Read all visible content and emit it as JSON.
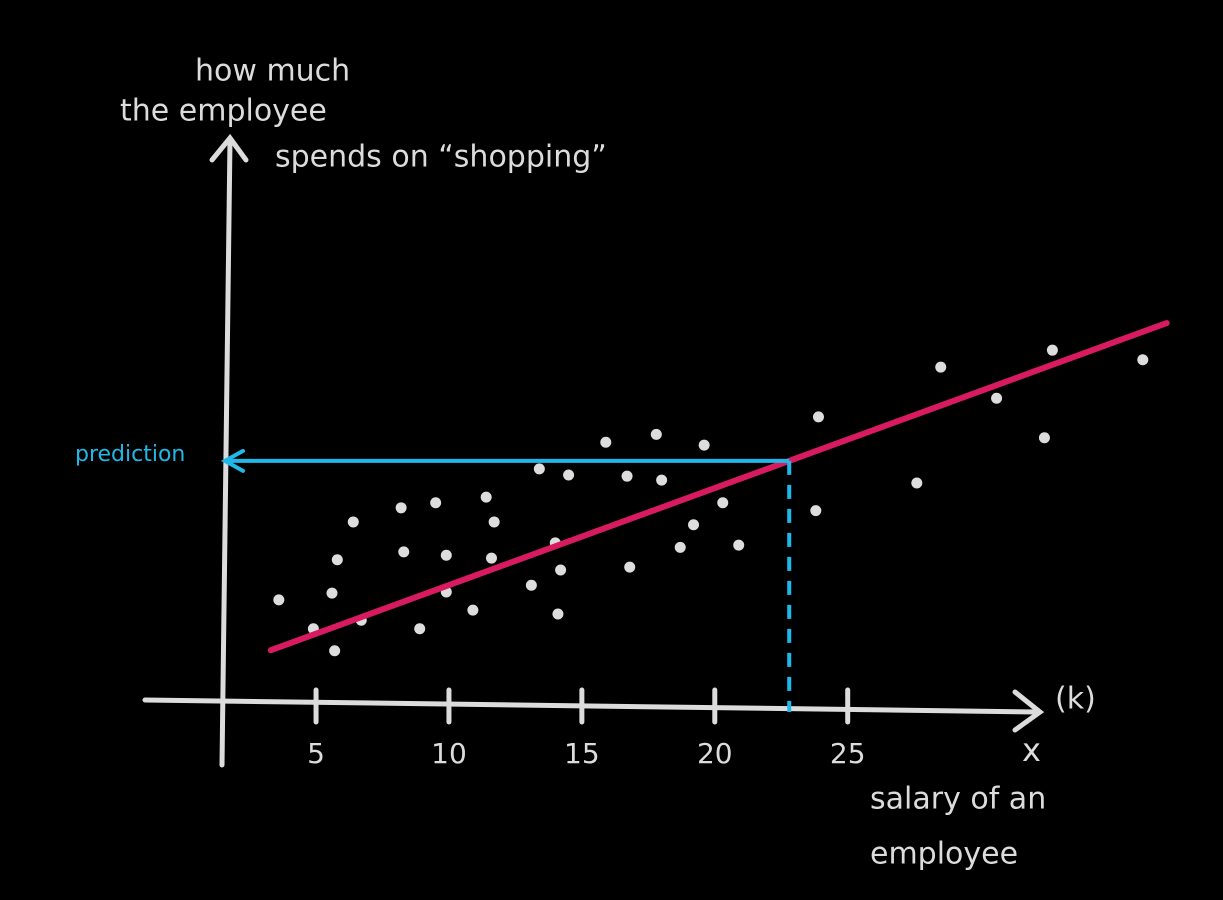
{
  "chart_data": {
    "type": "scatter",
    "y_label": [
      "how much",
      "the employee",
      "spends on “shopping”"
    ],
    "x_label": [
      "salary of an",
      "employee"
    ],
    "x_unit": "(k)",
    "x_symbol": "x",
    "x": [
      3.6,
      4.9,
      5.7,
      5.6,
      5.8,
      6.4,
      6.7,
      8.2,
      8.3,
      8.9,
      9.5,
      9.9,
      9.9,
      10.9,
      11.4,
      11.7,
      11.6,
      13.1,
      13.4,
      14.0,
      14.2,
      14.1,
      14.5,
      15.9,
      16.7,
      16.8,
      17.8,
      18.0,
      18.7,
      19.2,
      19.6,
      20.3,
      20.9,
      23.9,
      23.8,
      27.6,
      28.5,
      30.6,
      32.4,
      32.7,
      36.1
    ],
    "values": [
      18.6,
      13.5,
      9.6,
      19.8,
      25.7,
      32.4,
      15.0,
      34.9,
      27.1,
      13.5,
      35.8,
      26.5,
      20.0,
      16.8,
      36.8,
      32.4,
      26.0,
      21.2,
      41.8,
      28.7,
      23.9,
      16.1,
      40.7,
      46.5,
      40.5,
      24.4,
      47.9,
      39.8,
      27.9,
      31.9,
      46.0,
      35.8,
      28.3,
      51.0,
      34.4,
      39.3,
      59.8,
      54.3,
      47.3,
      62.8,
      61.1
    ],
    "color": "#dddddd",
    "xlim": [
      1.5,
      37.5
    ],
    "ylim": [
      0,
      100
    ],
    "xticks": [
      5,
      10,
      15,
      20,
      25
    ],
    "regression": {
      "color": "#d81b60",
      "x": [
        3.3,
        37.0
      ],
      "y": [
        9.7,
        67.6
      ]
    },
    "prediction": {
      "label": "prediction",
      "color": "#1fb8e8",
      "x": 22.8,
      "y": 43.2
    }
  }
}
